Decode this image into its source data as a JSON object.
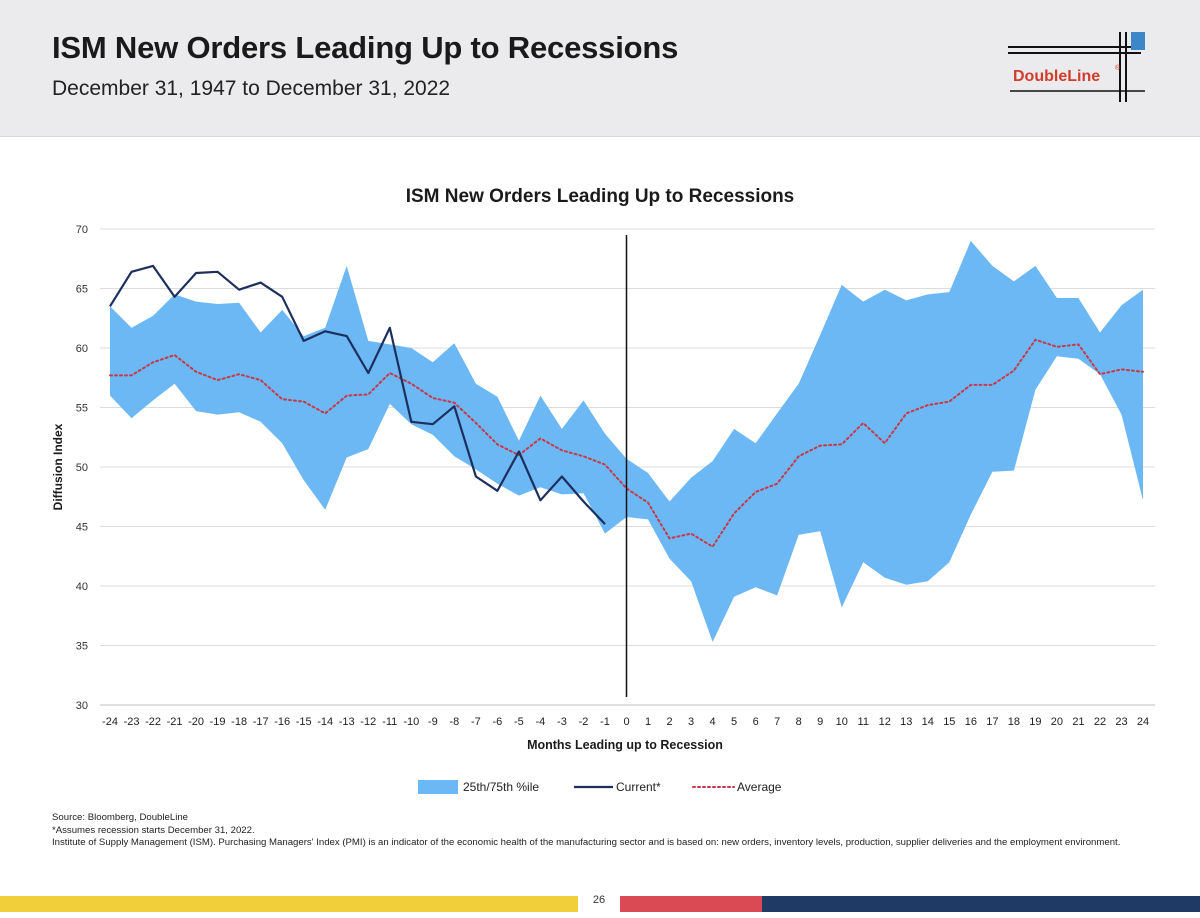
{
  "page": {
    "title": "ISM New Orders Leading Up to Recessions",
    "subtitle": "December 31, 1947 to December 31, 2022",
    "logo_text": "DoubleLine",
    "logo_mark": "®",
    "page_number": "26"
  },
  "notes": {
    "source": "Source: Bloomberg, DoubleLine",
    "assumption": "*Assumes recession starts December 31, 2022.",
    "definition": "Institute of Supply Management (ISM). Purchasing Managers' Index (PMI) is an indicator of the economic health of the manufacturing sector and is based on: new orders, inventory levels, production, supplier deliveries and the employment environment."
  },
  "colors": {
    "band": "#6cb8f4",
    "current": "#1c2f5e",
    "average": "#c8384a",
    "footer_yellow": "#f0cf3a",
    "footer_red": "#d94a54",
    "footer_navy": "#203a66",
    "logo_red": "#d23c2d",
    "logo_blue": "#3d87c8"
  },
  "chart_data": {
    "type": "area",
    "title": "ISM New Orders Leading Up to Recessions",
    "xlabel": "Months Leading up to Recession",
    "ylabel": "Diffusion Index",
    "ylim": [
      30,
      70
    ],
    "yticks": [
      30,
      35,
      40,
      45,
      50,
      55,
      60,
      65,
      70
    ],
    "x": [
      -24,
      -23,
      -22,
      -21,
      -20,
      -19,
      -18,
      -17,
      -16,
      -15,
      -14,
      -13,
      -12,
      -11,
      -10,
      -9,
      -8,
      -7,
      -6,
      -5,
      -4,
      -3,
      -2,
      -1,
      0,
      1,
      2,
      3,
      4,
      5,
      6,
      7,
      8,
      9,
      10,
      11,
      12,
      13,
      14,
      15,
      16,
      17,
      18,
      19,
      20,
      21,
      22,
      23,
      24
    ],
    "vline_x": 0,
    "legend": [
      "25th/75th %ile",
      "Current*",
      "Average"
    ],
    "legend_position": "bottom",
    "series": [
      {
        "name": "25th/75th %ile",
        "kind": "band",
        "upper": [
          63.5,
          61.7,
          62.7,
          64.5,
          63.9,
          63.7,
          63.8,
          61.3,
          63.2,
          61.0,
          61.7,
          66.9,
          60.6,
          60.3,
          60.0,
          58.8,
          60.4,
          57.0,
          55.9,
          52.2,
          56.0,
          53.2,
          55.6,
          52.8,
          50.7,
          49.5,
          47.1,
          49.1,
          50.5,
          53.2,
          52.0,
          54.5,
          57.0,
          61.1,
          65.3,
          63.9,
          64.9,
          64.0,
          64.5,
          64.7,
          69.0,
          66.9,
          65.6,
          66.9,
          64.2,
          64.2,
          61.3,
          63.6,
          64.9
        ],
        "lower": [
          56.0,
          54.1,
          55.6,
          57.0,
          54.7,
          54.4,
          54.6,
          53.8,
          52.0,
          48.9,
          46.4,
          50.8,
          51.5,
          55.3,
          53.6,
          52.7,
          50.9,
          49.8,
          48.6,
          47.6,
          48.3,
          47.7,
          47.8,
          44.4,
          45.8,
          45.6,
          42.3,
          40.4,
          35.3,
          39.1,
          39.9,
          39.2,
          44.3,
          44.6,
          38.2,
          42.0,
          40.7,
          40.1,
          40.4,
          42.0,
          46.0,
          49.6,
          49.7,
          56.5,
          59.3,
          59.1,
          57.8,
          54.4,
          47.2
        ]
      },
      {
        "name": "Current*",
        "kind": "line",
        "values": [
          63.5,
          66.4,
          66.9,
          64.3,
          66.3,
          66.4,
          64.9,
          65.5,
          64.3,
          60.6,
          61.4,
          61.0,
          57.9,
          61.7,
          53.8,
          53.6,
          55.1,
          49.2,
          48.0,
          51.3,
          47.2,
          49.2,
          47.1,
          45.2,
          null,
          null,
          null,
          null,
          null,
          null,
          null,
          null,
          null,
          null,
          null,
          null,
          null,
          null,
          null,
          null,
          null,
          null,
          null,
          null,
          null,
          null,
          null,
          null,
          null
        ]
      },
      {
        "name": "Average",
        "kind": "dotted",
        "values": [
          57.7,
          57.7,
          58.8,
          59.4,
          58.0,
          57.3,
          57.8,
          57.3,
          55.7,
          55.5,
          54.5,
          56.0,
          56.1,
          57.9,
          57.0,
          55.8,
          55.4,
          53.7,
          51.9,
          51.0,
          52.4,
          51.4,
          50.9,
          50.2,
          48.2,
          47.0,
          44.0,
          44.4,
          43.3,
          46.1,
          47.9,
          48.6,
          50.9,
          51.8,
          51.9,
          53.7,
          52.0,
          54.5,
          55.2,
          55.5,
          56.9,
          56.9,
          58.1,
          60.7,
          60.1,
          60.3,
          57.8,
          58.2,
          58.0
        ]
      }
    ]
  }
}
